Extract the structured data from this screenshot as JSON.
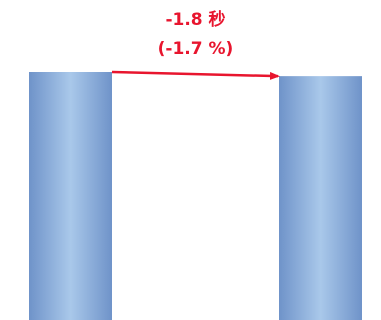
{
  "chart_data": {
    "type": "bar",
    "categories": [
      "",
      ""
    ],
    "values": [
      107.0,
      105.2
    ],
    "annotation": {
      "line1": "-1.8 秒",
      "line2": "(-1.7 %)"
    },
    "colors": {
      "bar_edge": "#6f93c9",
      "bar_center": "#a9c8ea",
      "annotation": "#e8152e"
    }
  }
}
